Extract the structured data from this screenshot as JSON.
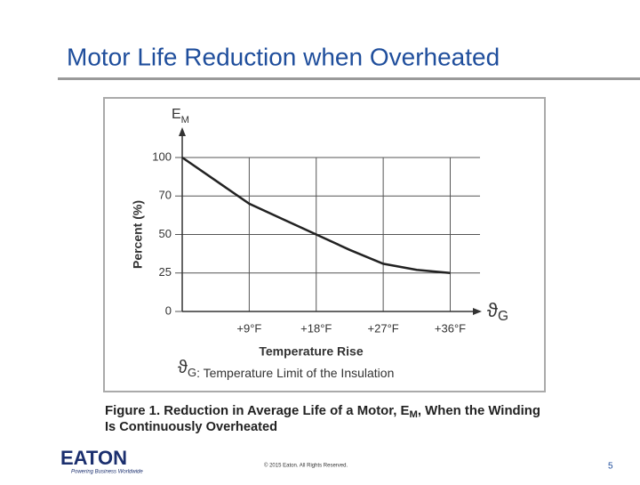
{
  "slide": {
    "title": "Motor Life Reduction when Overheated",
    "logo": "EATON",
    "tagline": "Powering Business Worldwide",
    "copyright": "© 2015 Eaton. All Rights Reserved.",
    "page": "5"
  },
  "chart_data": {
    "type": "line",
    "y_symbol": "E",
    "y_symbol_sub": "M",
    "ylabel": "Percent (%)",
    "xlabel": "Temperature Rise",
    "x_symbol": "ϑ",
    "x_symbol_sub": "G",
    "annotation": {
      "symbol": "ϑ",
      "sub": "G",
      "text": ": Temperature Limit of the Insulation"
    },
    "caption": {
      "line1": "Figure 1. Reduction in Average Life of a Motor, E",
      "sub": "M",
      "line1_end": ", When the Winding",
      "line2": "Is Continuously Overheated"
    },
    "x": [
      0,
      4.5,
      9,
      13.5,
      18,
      22.5,
      27,
      31.5,
      36
    ],
    "series": [
      {
        "color": "#222222",
        "values": [
          100,
          82,
          66,
          58,
          50,
          40,
          31,
          27,
          25
        ]
      }
    ],
    "xlim": [
      0,
      40
    ],
    "ylim": [
      0,
      100
    ],
    "xticks": [
      {
        "value": 9,
        "label": "+9°F"
      },
      {
        "value": 18,
        "label": "+18°F"
      },
      {
        "value": 27,
        "label": "+27°F"
      },
      {
        "value": 36,
        "label": "+36°F"
      }
    ],
    "yticks": [
      0,
      25,
      50,
      70,
      100
    ],
    "grid": true
  }
}
